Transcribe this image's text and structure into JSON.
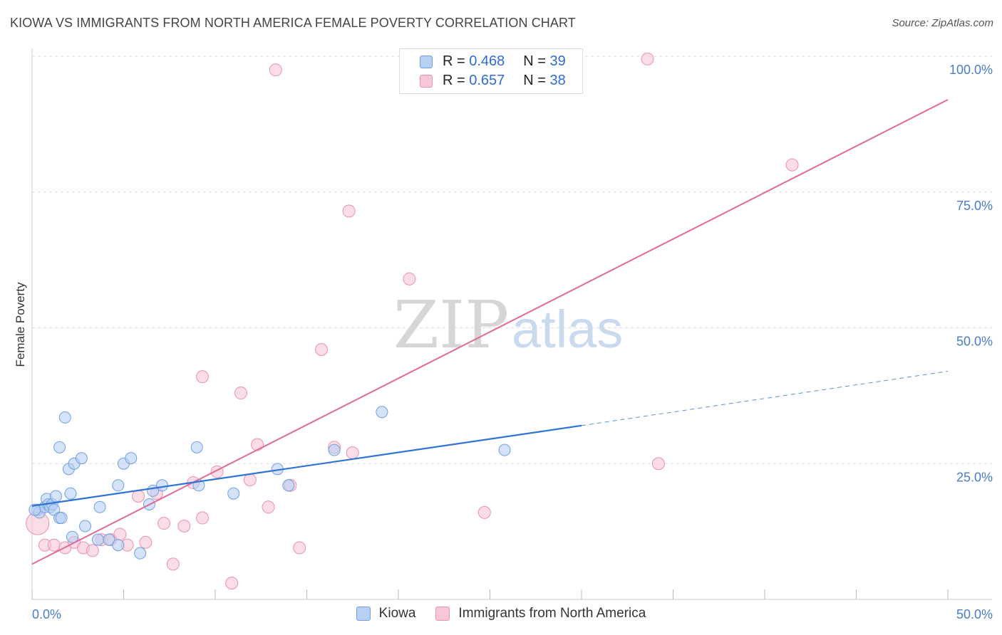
{
  "title": "KIOWA VS IMMIGRANTS FROM NORTH AMERICA FEMALE POVERTY CORRELATION CHART",
  "source": "Source: ZipAtlas.com",
  "watermark": {
    "zip": "ZIP",
    "atlas": "atlas"
  },
  "legend": [
    {
      "r_label": "R =",
      "r_value": "0.468",
      "n_label": "N =",
      "n_value": "39"
    },
    {
      "r_label": "R =",
      "r_value": "0.657",
      "n_label": "N =",
      "n_value": "38"
    }
  ],
  "colors": {
    "kiowa_fill": "#b7d1f3",
    "kiowa_stroke": "#6f9fe0",
    "kiowa_line": "#2f73d6",
    "imm_fill": "#f8c6d6",
    "imm_stroke": "#ea91b0",
    "imm_line": "#e06b96",
    "tick": "#4a7cc7",
    "grid": "#dddddd"
  },
  "chart_data": {
    "type": "scatter",
    "title": "KIOWA VS IMMIGRANTS FROM NORTH AMERICA FEMALE POVERTY CORRELATION CHART",
    "xlabel": "",
    "ylabel": "Female Poverty",
    "xlim": [
      0,
      50
    ],
    "ylim": [
      0,
      100
    ],
    "x_tick_labels": [
      "0.0%",
      "50.0%"
    ],
    "y_ticks": [
      25,
      50,
      75,
      100
    ],
    "y_tick_labels": [
      "25.0%",
      "50.0%",
      "75.0%",
      "100.0%"
    ],
    "legend_position": "bottom",
    "series": [
      {
        "name": "Kiowa",
        "r": 0.468,
        "n": 39,
        "trend": {
          "x0": 0,
          "y0": 17.2,
          "x1": 30,
          "y1": 32.0,
          "x_dash_end": 50,
          "y_dash_end": 42.0
        },
        "points": [
          [
            0.3,
            16.5
          ],
          [
            0.4,
            16.0
          ],
          [
            0.7,
            17.0
          ],
          [
            0.8,
            18.5
          ],
          [
            0.9,
            17.5
          ],
          [
            1.0,
            17.0
          ],
          [
            1.1,
            17.5
          ],
          [
            1.2,
            16.5
          ],
          [
            1.3,
            19.0
          ],
          [
            1.5,
            15.0
          ],
          [
            1.6,
            15.0
          ],
          [
            1.5,
            28.0
          ],
          [
            1.8,
            33.5
          ],
          [
            2.0,
            24.0
          ],
          [
            2.1,
            19.5
          ],
          [
            2.2,
            11.5
          ],
          [
            2.3,
            25.0
          ],
          [
            2.7,
            26.0
          ],
          [
            2.9,
            13.5
          ],
          [
            3.7,
            17.0
          ],
          [
            3.6,
            11.0
          ],
          [
            4.2,
            11.0
          ],
          [
            4.7,
            21.0
          ],
          [
            4.7,
            10.0
          ],
          [
            5.0,
            25.0
          ],
          [
            5.4,
            26.0
          ],
          [
            5.9,
            8.5
          ],
          [
            6.4,
            17.5
          ],
          [
            6.6,
            20.0
          ],
          [
            7.1,
            21.0
          ],
          [
            9.1,
            21.0
          ],
          [
            9.0,
            28.0
          ],
          [
            11.0,
            19.5
          ],
          [
            13.4,
            24.0
          ],
          [
            14.0,
            21.0
          ],
          [
            16.5,
            27.5
          ],
          [
            19.1,
            34.5
          ],
          [
            25.8,
            27.5
          ],
          [
            0.15,
            16.5
          ]
        ]
      },
      {
        "name": "Immigrants from North America",
        "r": 0.657,
        "n": 38,
        "trend": {
          "x0": 0,
          "y0": 6.5,
          "x1": 50,
          "y1": 92.0
        },
        "points": [
          [
            0.3,
            14.0
          ],
          [
            0.7,
            10.0
          ],
          [
            1.2,
            10.0
          ],
          [
            1.8,
            9.5
          ],
          [
            2.3,
            10.5
          ],
          [
            2.8,
            9.5
          ],
          [
            3.3,
            9.0
          ],
          [
            3.8,
            11.0
          ],
          [
            4.3,
            11.0
          ],
          [
            4.8,
            12.0
          ],
          [
            5.2,
            10.0
          ],
          [
            5.8,
            19.0
          ],
          [
            6.2,
            10.5
          ],
          [
            6.8,
            19.5
          ],
          [
            7.2,
            14.0
          ],
          [
            7.7,
            6.5
          ],
          [
            8.3,
            13.5
          ],
          [
            8.8,
            21.5
          ],
          [
            9.3,
            41.0
          ],
          [
            9.3,
            15.0
          ],
          [
            10.1,
            23.5
          ],
          [
            10.9,
            3.0
          ],
          [
            11.4,
            38.0
          ],
          [
            11.9,
            22.0
          ],
          [
            12.3,
            28.5
          ],
          [
            12.9,
            17.0
          ],
          [
            13.3,
            97.5
          ],
          [
            14.1,
            21.0
          ],
          [
            14.6,
            9.5
          ],
          [
            15.8,
            46.0
          ],
          [
            16.5,
            28.0
          ],
          [
            17.3,
            71.5
          ],
          [
            17.5,
            27.0
          ],
          [
            20.6,
            59.0
          ],
          [
            24.7,
            16.0
          ],
          [
            33.6,
            99.5
          ],
          [
            34.2,
            25.0
          ],
          [
            41.5,
            80.0
          ]
        ]
      }
    ]
  },
  "bottom_legend": [
    "Kiowa",
    "Immigrants from North America"
  ]
}
